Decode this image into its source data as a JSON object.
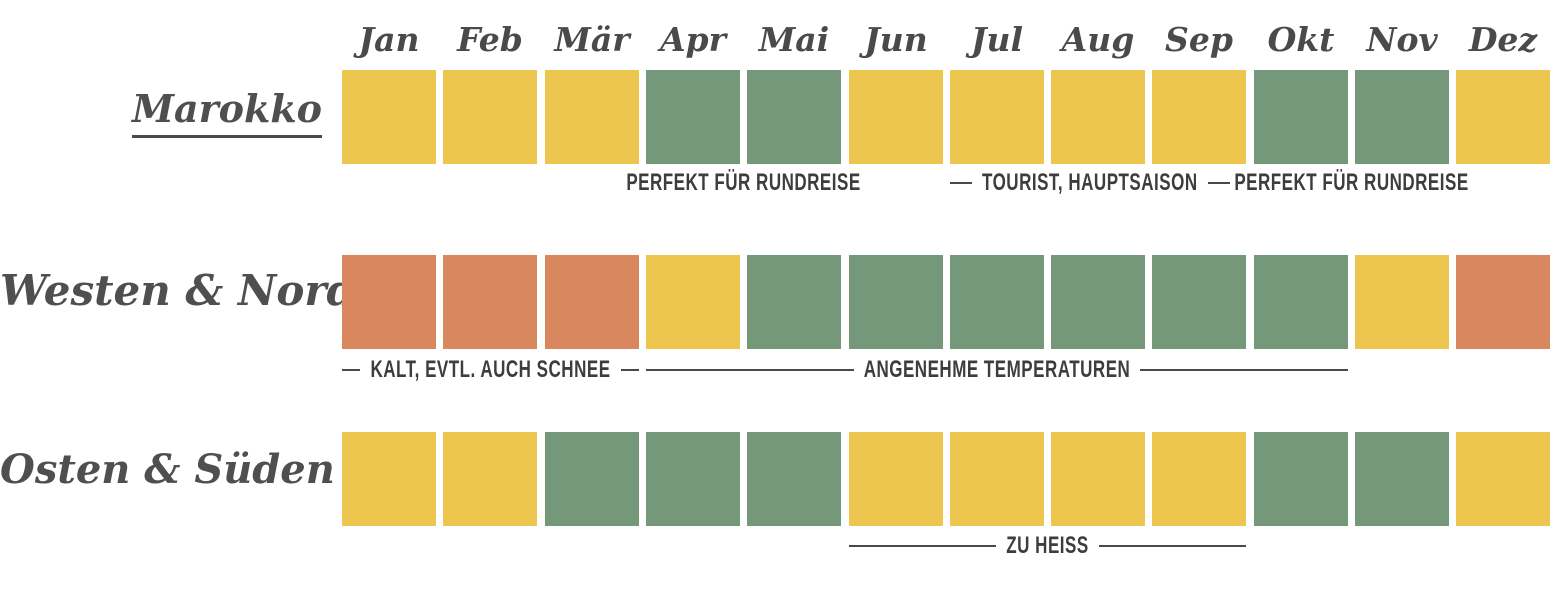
{
  "chart_data": {
    "type": "heatmap",
    "title": "Marokko",
    "months": [
      "Jan",
      "Feb",
      "Mär",
      "Apr",
      "Mai",
      "Jun",
      "Jul",
      "Aug",
      "Sep",
      "Okt",
      "Nov",
      "Dez"
    ],
    "palette": {
      "yellow": "#ecc64f",
      "green": "#75977a",
      "orange": "#d9875f"
    },
    "text_color": "#4a4a4a",
    "rows": [
      {
        "label": "Marokko",
        "underlined": true,
        "values": [
          "yellow",
          "yellow",
          "yellow",
          "green",
          "green",
          "yellow",
          "yellow",
          "yellow",
          "yellow",
          "green",
          "green",
          "yellow"
        ],
        "annotations": [
          {
            "text": "PERFEKT FÜR RUNDREISE",
            "start": 3,
            "end": 4,
            "lines": "none"
          },
          {
            "text": "TOURIST, HAUPTSAISON",
            "start": 6,
            "end": 7,
            "lines": "short"
          },
          {
            "text": "PERFEKT FÜR RUNDREISE",
            "start": 9,
            "end": 10,
            "lines": "none"
          }
        ]
      },
      {
        "label": "Westen & Norden",
        "underlined": false,
        "values": [
          "orange",
          "orange",
          "orange",
          "yellow",
          "green",
          "green",
          "green",
          "green",
          "green",
          "green",
          "yellow",
          "orange"
        ],
        "annotations": [
          {
            "text": "KALT, EVTL. AUCH SCHNEE",
            "start": 0,
            "end": 2,
            "lines": "long"
          },
          {
            "text": "ANGENEHME TEMPERATUREN",
            "start": 3,
            "end": 9,
            "lines": "long"
          }
        ]
      },
      {
        "label": "Osten & Süden",
        "underlined": false,
        "values": [
          "yellow",
          "yellow",
          "green",
          "green",
          "green",
          "yellow",
          "yellow",
          "yellow",
          "yellow",
          "green",
          "green",
          "yellow"
        ],
        "annotations": [
          {
            "text": "ZU HEISS",
            "start": 5,
            "end": 8,
            "lines": "long"
          }
        ]
      }
    ]
  }
}
